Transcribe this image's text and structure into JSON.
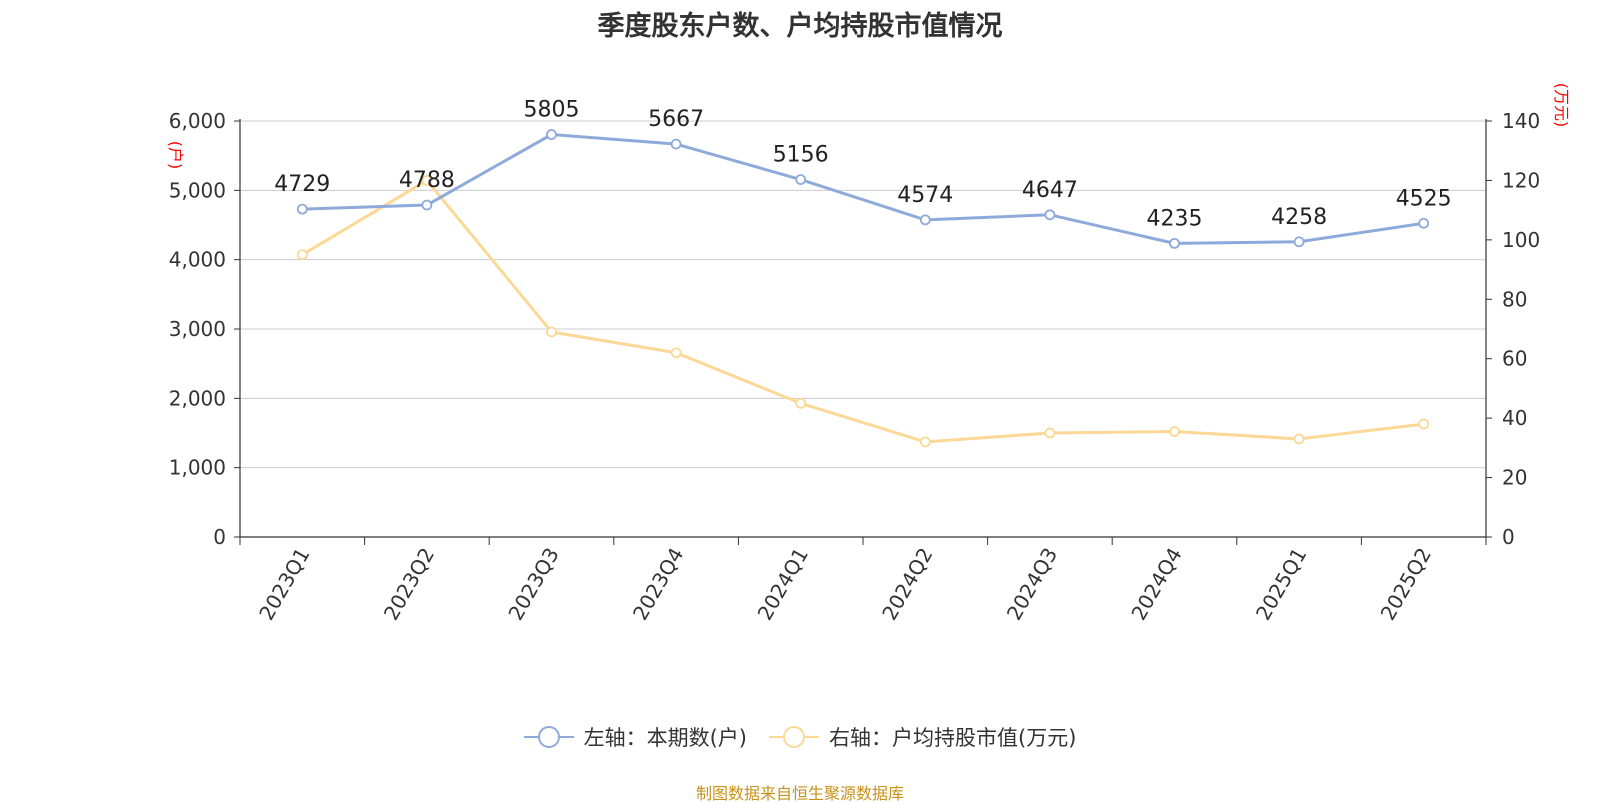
{
  "title": "季度股东户数、户均持股市值情况",
  "source": "制图数据来自恒生聚源数据库",
  "legend": {
    "left": "左轴：本期数(户)",
    "right": "右轴：户均持股市值(万元)"
  },
  "colors": {
    "left_series": "#8eaadb",
    "right_series": "#fcd896",
    "axis_unit": "#ff0000"
  },
  "chart_data": {
    "type": "line",
    "categories": [
      "2023Q1",
      "2023Q2",
      "2023Q3",
      "2023Q4",
      "2024Q1",
      "2024Q2",
      "2024Q3",
      "2024Q4",
      "2025Q1",
      "2025Q2"
    ],
    "series": [
      {
        "name": "左轴：本期数(户)",
        "axis": "left",
        "values": [
          4729,
          4788,
          5805,
          5667,
          5156,
          4574,
          4647,
          4235,
          4258,
          4525
        ],
        "show_labels": true
      },
      {
        "name": "右轴：户均持股市值(万元)",
        "axis": "right",
        "values": [
          95,
          120,
          69,
          62,
          45,
          32,
          35,
          35.5,
          33,
          38
        ],
        "show_labels": false
      }
    ],
    "y_left": {
      "unit": "(户)",
      "range": [
        0,
        6000
      ],
      "ticks": [
        0,
        1000,
        2000,
        3000,
        4000,
        5000,
        6000
      ],
      "tick_labels": [
        "0",
        "1,000",
        "2,000",
        "3,000",
        "4,000",
        "5,000",
        "6,000"
      ]
    },
    "y_right": {
      "unit": "(万元)",
      "range": [
        0,
        140
      ],
      "ticks": [
        0,
        20,
        40,
        60,
        80,
        100,
        120,
        140
      ],
      "tick_labels": [
        "0",
        "20",
        "40",
        "60",
        "80",
        "100",
        "120",
        "140"
      ]
    },
    "grid": true,
    "legend_position": "bottom"
  }
}
